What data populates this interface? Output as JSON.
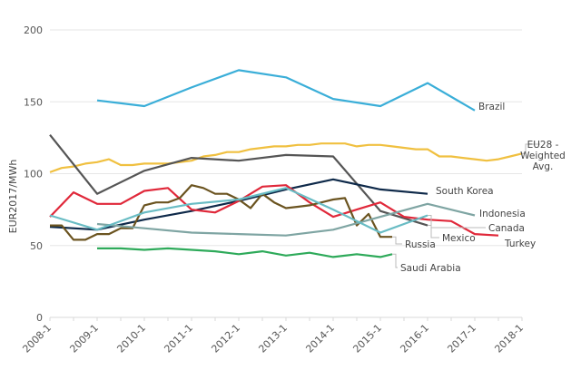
{
  "chart_data": {
    "type": "line",
    "title": "",
    "xlabel": "",
    "ylabel": "EUR2017/MWh",
    "ylim": [
      0,
      200
    ],
    "yticks": [
      0,
      50,
      100,
      150,
      200
    ],
    "grid": true,
    "legend": "inline-labels-right",
    "x_start": 2008.0,
    "x_end": 2018.0,
    "xticks": [
      "2008-1",
      "2009-1",
      "2010-1",
      "2011-1",
      "2012-1",
      "2013-1",
      "2014-1",
      "2015-1",
      "2016-1",
      "2017-1",
      "2018-1"
    ],
    "series": [
      {
        "name": "Brazil",
        "color": "#3aaed8",
        "label": "Brazil",
        "x": [
          2009.0,
          2010.0,
          2011.0,
          2012.0,
          2013.0,
          2014.0,
          2015.0,
          2016.0,
          2017.0
        ],
        "y": [
          151,
          147,
          160,
          172,
          167,
          152,
          147,
          163,
          144
        ]
      },
      {
        "name": "EU28 - Weighted Avg.",
        "color": "#f0c040",
        "label": "EU28 - Weighted Avg.",
        "x": [
          2008.0,
          2008.25,
          2008.5,
          2008.75,
          2009.0,
          2009.25,
          2009.5,
          2009.75,
          2010.0,
          2010.25,
          2010.5,
          2010.75,
          2011.0,
          2011.25,
          2011.5,
          2011.75,
          2012.0,
          2012.25,
          2012.5,
          2012.75,
          2013.0,
          2013.25,
          2013.5,
          2013.75,
          2014.0,
          2014.25,
          2014.5,
          2014.75,
          2015.0,
          2015.25,
          2015.5,
          2015.75,
          2016.0,
          2016.25,
          2016.5,
          2016.75,
          2017.0,
          2017.25,
          2017.5,
          2017.75,
          2018.0
        ],
        "y": [
          101,
          104,
          105,
          107,
          108,
          110,
          106,
          106,
          107,
          107,
          107,
          108,
          109,
          112,
          113,
          115,
          115,
          117,
          118,
          119,
          119,
          120,
          120,
          121,
          121,
          121,
          119,
          120,
          120,
          119,
          118,
          117,
          117,
          112,
          112,
          111,
          110,
          109,
          110,
          112,
          114
        ]
      },
      {
        "name": "Mexico",
        "color": "#555555",
        "label": "Mexico",
        "x": [
          2008.0,
          2009.0,
          2010.0,
          2011.0,
          2012.0,
          2013.0,
          2014.0,
          2015.0,
          2016.0
        ],
        "y": [
          127,
          86,
          102,
          111,
          109,
          113,
          112,
          74,
          64
        ]
      },
      {
        "name": "South Korea",
        "color": "#0f2a4a",
        "label": "South Korea",
        "x": [
          2008.0,
          2009.0,
          2010.0,
          2011.0,
          2012.0,
          2013.0,
          2014.0,
          2015.0,
          2016.0
        ],
        "y": [
          63,
          61,
          68,
          74,
          81,
          89,
          96,
          89,
          86
        ]
      },
      {
        "name": "Turkey",
        "color": "#e0283a",
        "label": "Turkey",
        "x": [
          2008.0,
          2008.5,
          2009.0,
          2009.5,
          2010.0,
          2010.5,
          2011.0,
          2011.5,
          2012.0,
          2012.5,
          2013.0,
          2013.5,
          2014.0,
          2014.5,
          2015.0,
          2015.5,
          2016.0,
          2016.5,
          2017.0,
          2017.5
        ],
        "y": [
          70,
          87,
          79,
          79,
          88,
          90,
          75,
          73,
          81,
          91,
          92,
          80,
          70,
          75,
          80,
          70,
          68,
          67,
          58,
          57
        ]
      },
      {
        "name": "Russia",
        "color": "#6b5420",
        "label": "Russia",
        "x": [
          2008.0,
          2008.25,
          2008.5,
          2008.75,
          2009.0,
          2009.25,
          2009.5,
          2009.75,
          2010.0,
          2010.25,
          2010.5,
          2010.75,
          2011.0,
          2011.25,
          2011.5,
          2011.75,
          2012.0,
          2012.25,
          2012.5,
          2012.75,
          2013.0,
          2013.25,
          2013.5,
          2013.75,
          2014.0,
          2014.25,
          2014.5,
          2014.75,
          2015.0,
          2015.25
        ],
        "y": [
          64,
          64,
          54,
          54,
          58,
          58,
          62,
          62,
          78,
          80,
          80,
          83,
          92,
          90,
          86,
          86,
          82,
          76,
          86,
          80,
          76,
          77,
          78,
          80,
          82,
          83,
          64,
          72,
          56,
          56
        ]
      },
      {
        "name": "Indonesia",
        "color": "#7fa5a3",
        "label": "Indonesia",
        "x": [
          2009.0,
          2010.0,
          2011.0,
          2012.0,
          2013.0,
          2014.0,
          2015.0,
          2016.0,
          2017.0
        ],
        "y": [
          65,
          62,
          59,
          58,
          57,
          61,
          70,
          79,
          71
        ]
      },
      {
        "name": "Canada",
        "color": "#69bcc4",
        "label": "Canada",
        "x": [
          2008.0,
          2009.0,
          2010.0,
          2011.0,
          2012.0,
          2013.0,
          2014.0,
          2015.0,
          2016.0
        ],
        "y": [
          71,
          61,
          73,
          79,
          82,
          90,
          75,
          59,
          71
        ]
      },
      {
        "name": "Saudi Arabia",
        "color": "#2eaa5a",
        "label": "Saudi Arabia",
        "x": [
          2009.0,
          2009.5,
          2010.0,
          2010.5,
          2011.0,
          2011.5,
          2012.0,
          2012.5,
          2013.0,
          2013.5,
          2014.0,
          2014.5,
          2015.0,
          2015.25
        ],
        "y": [
          48,
          48,
          47,
          48,
          47,
          46,
          44,
          46,
          43,
          45,
          42,
          44,
          42,
          44
        ]
      }
    ]
  }
}
